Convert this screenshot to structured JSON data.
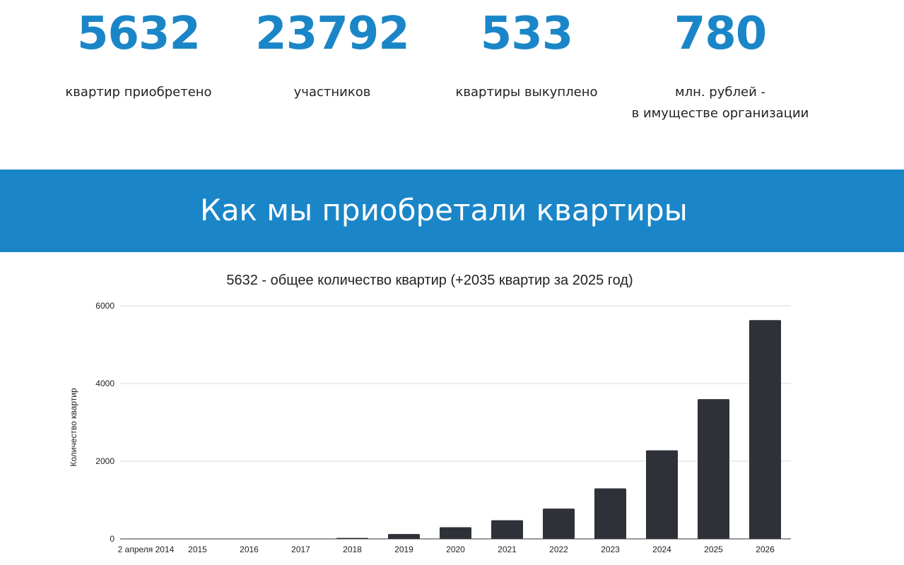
{
  "stats": [
    {
      "value": "5632",
      "caption": "квартир приобретено"
    },
    {
      "value": "23792",
      "caption": "участников"
    },
    {
      "value": "533",
      "caption": "квартиры выкуплено"
    },
    {
      "value": "780",
      "caption_line1": "млн. рублей -",
      "caption_line2": "в имуществе организации"
    }
  ],
  "banner": {
    "title": "Как мы приобретали квартиры"
  },
  "colors": {
    "accent": "#1a86c8",
    "bar": "#2e3138",
    "grid": "#d9d9d9"
  },
  "chart_data": {
    "type": "bar",
    "title": "5632 - общее количество квартир (+2035 квартир за 2025 год)",
    "xlabel": "",
    "ylabel": "Количество квартир",
    "categories": [
      "2 апреля 2014",
      "2015",
      "2016",
      "2017",
      "2018",
      "2019",
      "2020",
      "2021",
      "2022",
      "2023",
      "2024",
      "2025",
      "2026"
    ],
    "values": [
      0,
      0,
      0,
      0,
      25,
      125,
      300,
      480,
      780,
      1300,
      2280,
      3597,
      5632
    ],
    "ylim": [
      0,
      6000
    ],
    "yticks": [
      0,
      2000,
      4000,
      6000
    ],
    "grid": true,
    "legend": "none"
  }
}
